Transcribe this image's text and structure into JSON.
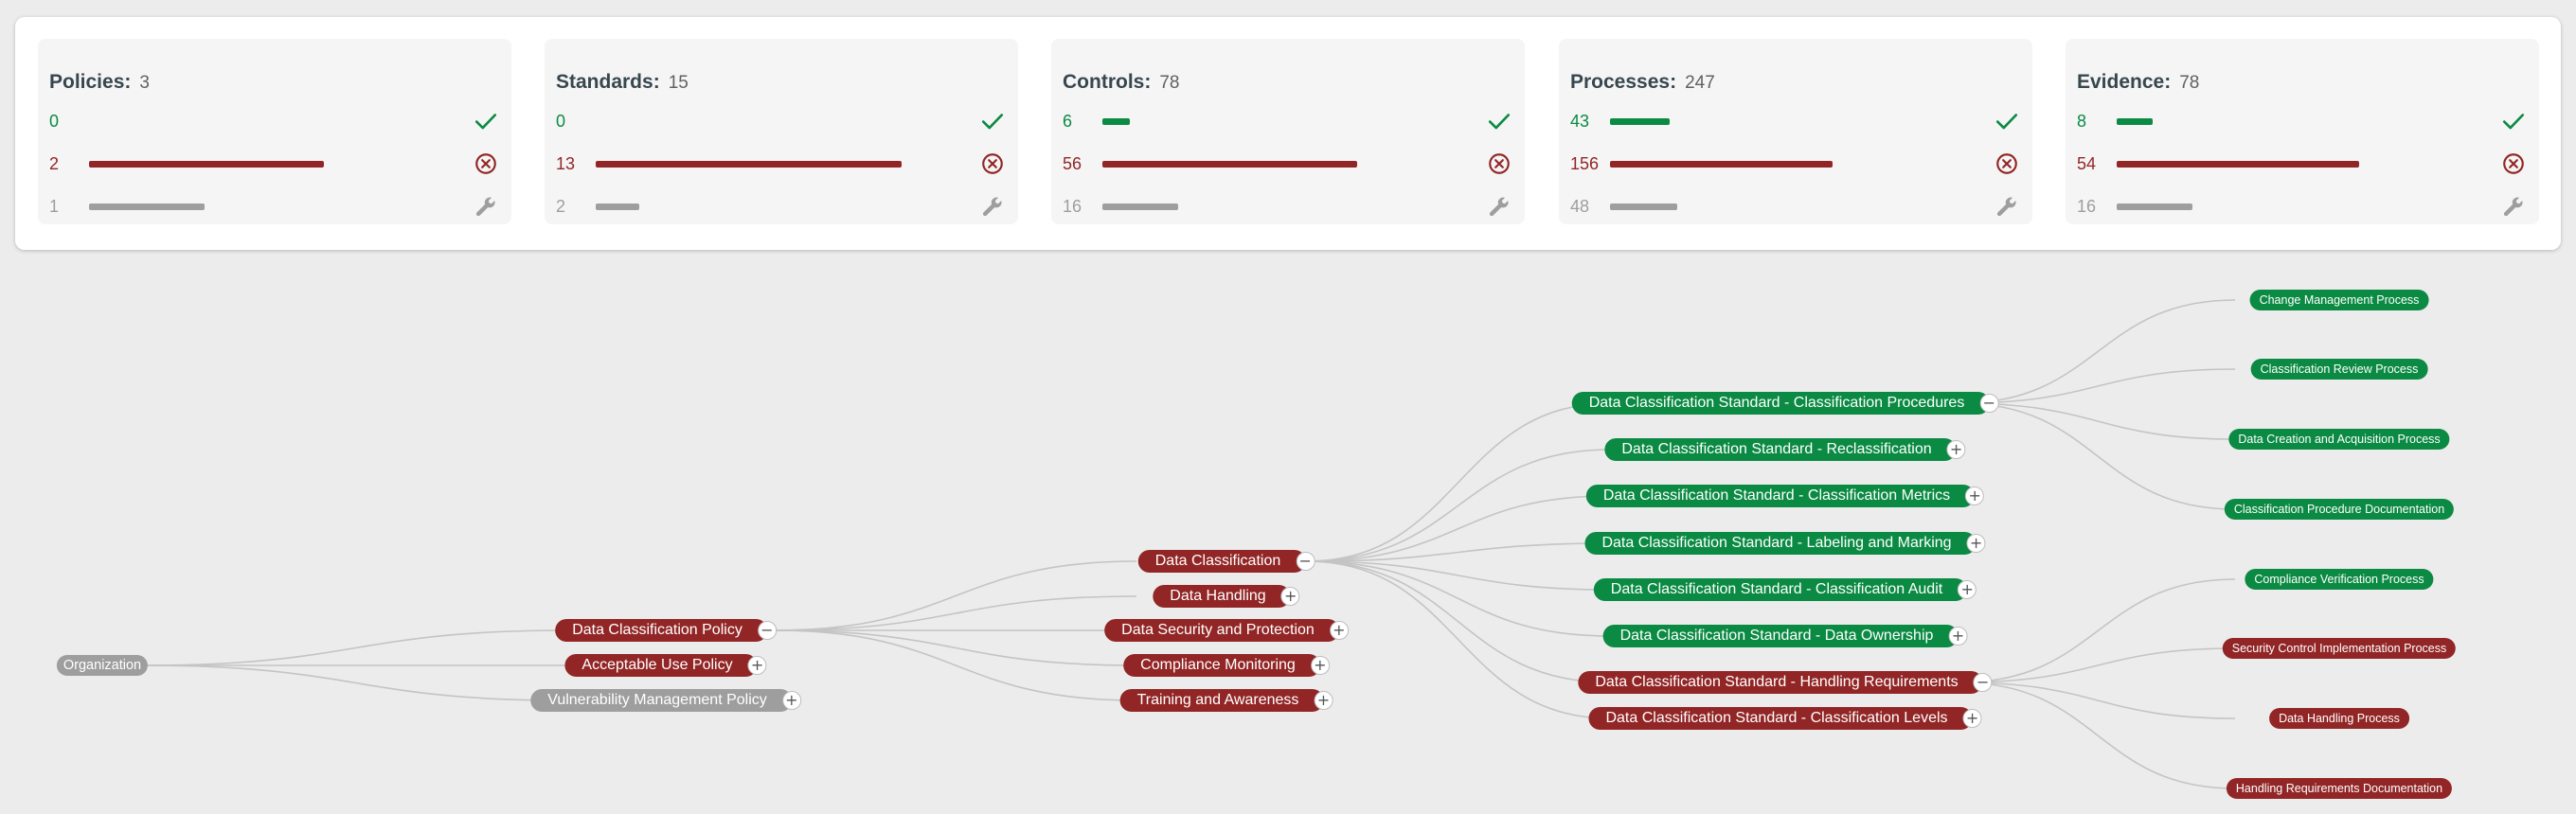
{
  "summary": {
    "cards": [
      {
        "title": "Policies:",
        "count": "3",
        "pass": "0",
        "fail": "2",
        "na": "1",
        "pass_frac": 0,
        "fail_frac": 0.59,
        "na_frac": 0.29
      },
      {
        "title": "Standards:",
        "count": "15",
        "pass": "0",
        "fail": "13",
        "na": "2",
        "pass_frac": 0,
        "fail_frac": 0.77,
        "na_frac": 0.11
      },
      {
        "title": "Controls:",
        "count": "78",
        "pass": "6",
        "fail": "56",
        "na": "16",
        "pass_frac": 0.07,
        "fail_frac": 0.64,
        "na_frac": 0.19
      },
      {
        "title": "Processes:",
        "count": "247",
        "pass": "43",
        "fail": "156",
        "na": "48",
        "pass_frac": 0.15,
        "fail_frac": 0.56,
        "na_frac": 0.17
      },
      {
        "title": "Evidence:",
        "count": "78",
        "pass": "8",
        "fail": "54",
        "na": "16",
        "pass_frac": 0.09,
        "fail_frac": 0.61,
        "na_frac": 0.19
      }
    ],
    "icons": {
      "pass": "check-icon",
      "fail": "circle-x-icon",
      "na": "wrench-icon"
    }
  },
  "colors": {
    "pass": "#0b8a43",
    "fail": "#922626",
    "na": "#9e9e9e",
    "link": "#c4c4c4"
  },
  "tree": {
    "root": "Organization",
    "policies": [
      {
        "label": "Data Classification Policy",
        "status": "fail",
        "expanded": true
      },
      {
        "label": "Acceptable Use Policy",
        "status": "fail",
        "expanded": false
      },
      {
        "label": "Vulnerability Management Policy",
        "status": "na",
        "expanded": false
      }
    ],
    "topics": [
      {
        "label": "Data Classification",
        "status": "fail",
        "expanded": true
      },
      {
        "label": "Data Handling",
        "status": "fail",
        "expanded": false
      },
      {
        "label": "Data Security and Protection",
        "status": "fail",
        "expanded": false
      },
      {
        "label": "Compliance Monitoring",
        "status": "fail",
        "expanded": false
      },
      {
        "label": "Training and Awareness",
        "status": "fail",
        "expanded": false
      }
    ],
    "standards": [
      {
        "label": "Data Classification Standard - Classification Procedures",
        "status": "pass",
        "expanded": true
      },
      {
        "label": "Data Classification Standard - Reclassification",
        "status": "pass",
        "expanded": false
      },
      {
        "label": "Data Classification Standard - Classification Metrics",
        "status": "pass",
        "expanded": false
      },
      {
        "label": "Data Classification Standard - Labeling and Marking",
        "status": "pass",
        "expanded": false
      },
      {
        "label": "Data Classification Standard - Classification Audit",
        "status": "pass",
        "expanded": false
      },
      {
        "label": "Data Classification Standard - Data Ownership",
        "status": "pass",
        "expanded": false
      },
      {
        "label": "Data Classification Standard - Handling Requirements",
        "status": "fail",
        "expanded": true
      },
      {
        "label": "Data Classification Standard - Classification Levels",
        "status": "fail",
        "expanded": false
      }
    ],
    "processes": [
      {
        "label": "Change Management Process",
        "status": "pass"
      },
      {
        "label": "Classification Review Process",
        "status": "pass"
      },
      {
        "label": "Data Creation and Acquisition Process",
        "status": "pass"
      },
      {
        "label": "Classification Procedure Documentation",
        "status": "pass"
      },
      {
        "label": "Compliance Verification Process",
        "status": "pass"
      },
      {
        "label": "Security Control Implementation Process",
        "status": "fail"
      },
      {
        "label": "Data Handling Process",
        "status": "fail"
      },
      {
        "label": "Handling Requirements Documentation",
        "status": "fail"
      }
    ]
  }
}
